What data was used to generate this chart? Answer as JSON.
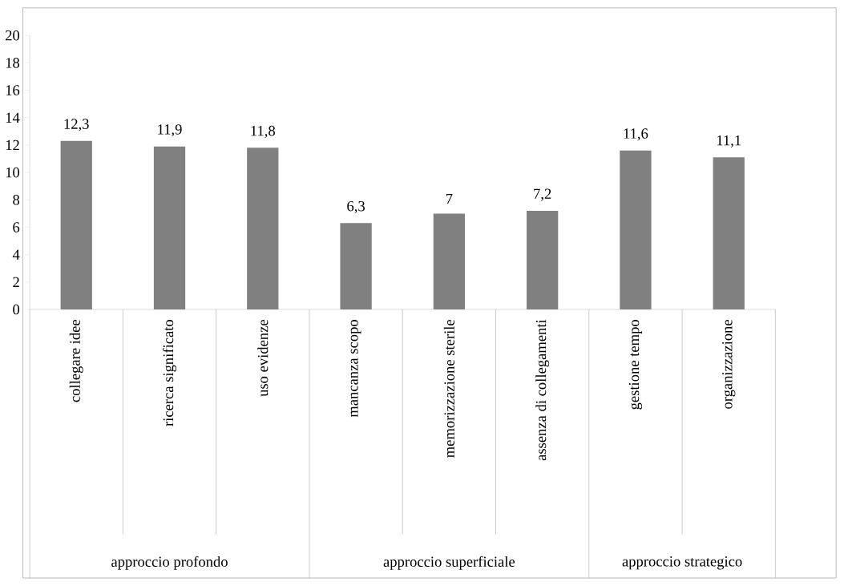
{
  "chart_data": {
    "type": "bar",
    "categories": [
      "collegare idee",
      "ricerca significato",
      "uso evidenze",
      "mancanza scopo",
      "memorizzazione sterile",
      "assenza di collegamenti",
      "gestione tempo",
      "organizzazione"
    ],
    "values": [
      12.3,
      11.9,
      11.8,
      6.3,
      7,
      7.2,
      11.6,
      11.1
    ],
    "value_labels": [
      "12,3",
      "11,9",
      "11,8",
      "6,3",
      "7",
      "7,2",
      "11,6",
      "11,1"
    ],
    "color": "#808080",
    "ylim": [
      0,
      20
    ],
    "yticks": [
      0,
      2,
      4,
      6,
      8,
      10,
      12,
      14,
      16,
      18,
      20
    ],
    "annotations": [
      "approccio profondo",
      "approccio superficiale",
      "approccio strategico"
    ]
  }
}
